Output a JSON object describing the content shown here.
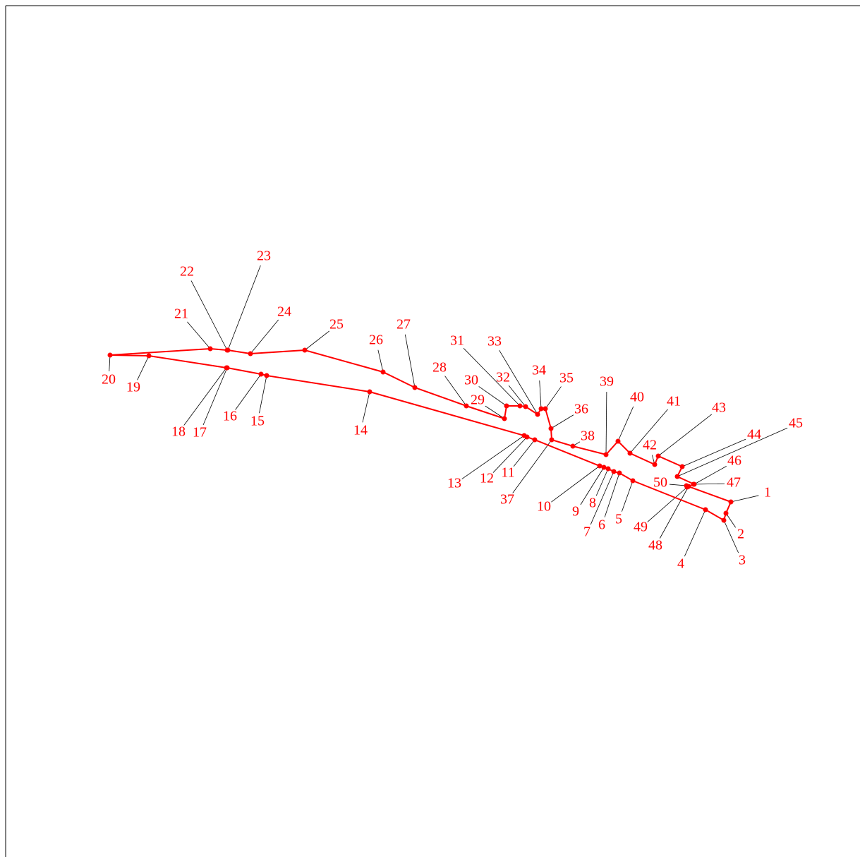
{
  "diagram": {
    "line_color": "#ff0000",
    "leader_color": "#000000",
    "point_labels": [
      "1",
      "2",
      "3",
      "4",
      "5",
      "6",
      "7",
      "8",
      "9",
      "10",
      "11",
      "12",
      "13",
      "14",
      "15",
      "16",
      "17",
      "18",
      "19",
      "20",
      "21",
      "22",
      "23",
      "24",
      "25",
      "26",
      "27",
      "28",
      "29",
      "30",
      "31",
      "32",
      "33",
      "34",
      "35",
      "36",
      "37",
      "38",
      "39",
      "40",
      "41",
      "42",
      "43",
      "44",
      "45",
      "46",
      "47",
      "48",
      "49",
      "50"
    ]
  }
}
